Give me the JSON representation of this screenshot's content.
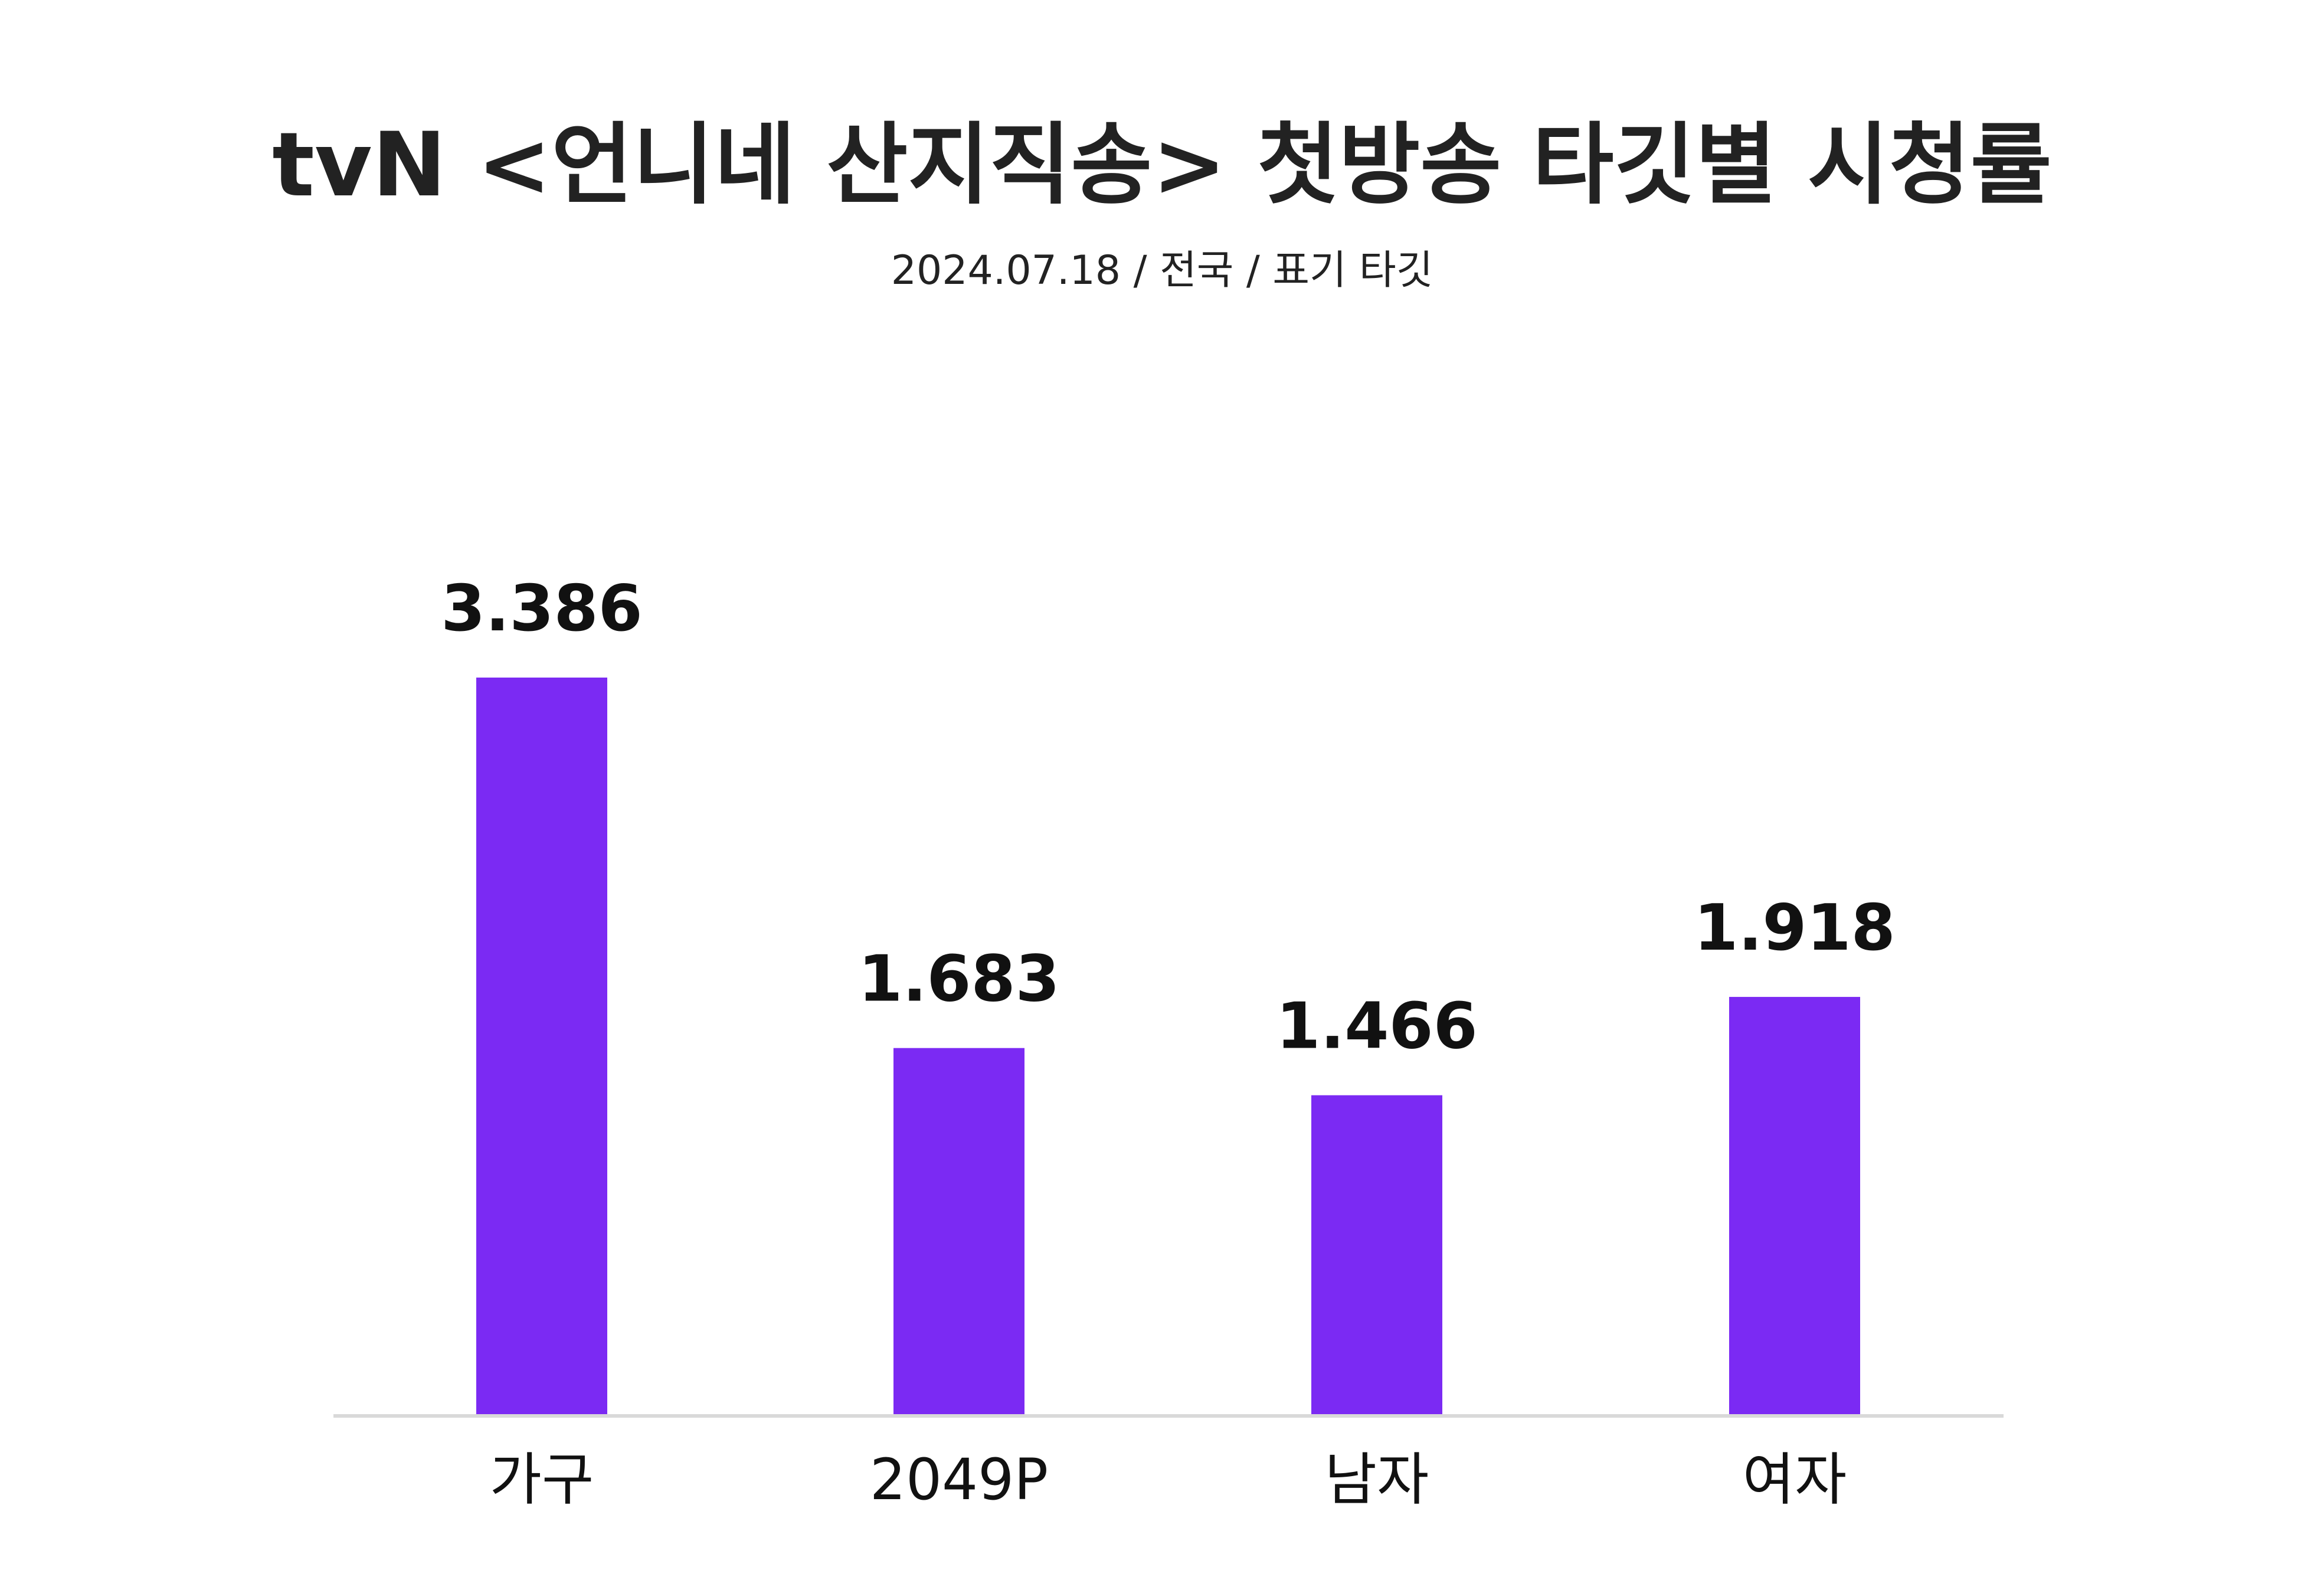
{
  "chart_data": {
    "type": "bar",
    "title": "tvN <언니네 산지직송> 첫방송 타깃별 시청률",
    "subtitle": "2024.07.18 / 전국 / 표기 타깃",
    "categories": [
      "가구",
      "2049P",
      "남자",
      "여자"
    ],
    "values": [
      3.386,
      1.683,
      1.466,
      1.918
    ],
    "value_labels": [
      "3.386",
      "1.683",
      "1.466",
      "1.918"
    ],
    "ylim": [
      0,
      3.386
    ],
    "grid": false,
    "legend": "none",
    "bar_color": "#7B2AF3",
    "baseline_color": "#D9D9D9"
  }
}
